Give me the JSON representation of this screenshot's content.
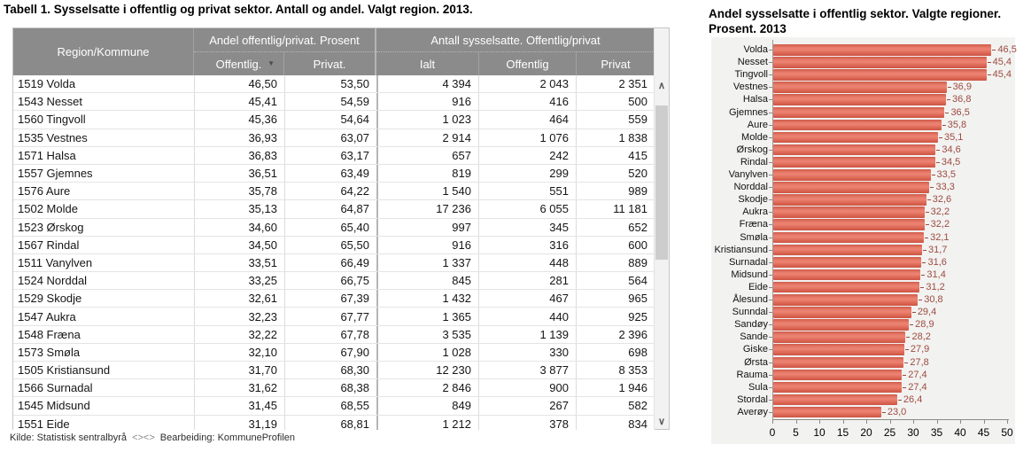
{
  "table": {
    "title": "Tabell 1. Sysselsatte i offentlig og privat sektor. Antall og andel. Valgt region. 2013.",
    "headers": {
      "region": "Region/Kommune",
      "group_andel": "Andel offentlig/privat. Prosent",
      "group_antall": "Antall sysselsatte. Offentlig/privat",
      "offentlig_pct": "Offentlig.",
      "privat_pct": "Privat.",
      "ialt": "Ialt",
      "offentlig": "Offentlig",
      "privat": "Privat"
    },
    "rows": [
      {
        "region": "1519 Volda",
        "andel_offentlig": "46,50",
        "andel_privat": "53,50",
        "ialt": "4 394",
        "offentlig": "2 043",
        "privat": "2 351"
      },
      {
        "region": "1543 Nesset",
        "andel_offentlig": "45,41",
        "andel_privat": "54,59",
        "ialt": "916",
        "offentlig": "416",
        "privat": "500"
      },
      {
        "region": "1560 Tingvoll",
        "andel_offentlig": "45,36",
        "andel_privat": "54,64",
        "ialt": "1 023",
        "offentlig": "464",
        "privat": "559"
      },
      {
        "region": "1535 Vestnes",
        "andel_offentlig": "36,93",
        "andel_privat": "63,07",
        "ialt": "2 914",
        "offentlig": "1 076",
        "privat": "1 838"
      },
      {
        "region": "1571 Halsa",
        "andel_offentlig": "36,83",
        "andel_privat": "63,17",
        "ialt": "657",
        "offentlig": "242",
        "privat": "415"
      },
      {
        "region": "1557 Gjemnes",
        "andel_offentlig": "36,51",
        "andel_privat": "63,49",
        "ialt": "819",
        "offentlig": "299",
        "privat": "520"
      },
      {
        "region": "1576 Aure",
        "andel_offentlig": "35,78",
        "andel_privat": "64,22",
        "ialt": "1 540",
        "offentlig": "551",
        "privat": "989"
      },
      {
        "region": "1502 Molde",
        "andel_offentlig": "35,13",
        "andel_privat": "64,87",
        "ialt": "17 236",
        "offentlig": "6 055",
        "privat": "11 181"
      },
      {
        "region": "1523 Ørskog",
        "andel_offentlig": "34,60",
        "andel_privat": "65,40",
        "ialt": "997",
        "offentlig": "345",
        "privat": "652"
      },
      {
        "region": "1567 Rindal",
        "andel_offentlig": "34,50",
        "andel_privat": "65,50",
        "ialt": "916",
        "offentlig": "316",
        "privat": "600"
      },
      {
        "region": "1511 Vanylven",
        "andel_offentlig": "33,51",
        "andel_privat": "66,49",
        "ialt": "1 337",
        "offentlig": "448",
        "privat": "889"
      },
      {
        "region": "1524 Norddal",
        "andel_offentlig": "33,25",
        "andel_privat": "66,75",
        "ialt": "845",
        "offentlig": "281",
        "privat": "564"
      },
      {
        "region": "1529 Skodje",
        "andel_offentlig": "32,61",
        "andel_privat": "67,39",
        "ialt": "1 432",
        "offentlig": "467",
        "privat": "965"
      },
      {
        "region": "1547 Aukra",
        "andel_offentlig": "32,23",
        "andel_privat": "67,77",
        "ialt": "1 365",
        "offentlig": "440",
        "privat": "925"
      },
      {
        "region": "1548 Fræna",
        "andel_offentlig": "32,22",
        "andel_privat": "67,78",
        "ialt": "3 535",
        "offentlig": "1 139",
        "privat": "2 396"
      },
      {
        "region": "1573 Smøla",
        "andel_offentlig": "32,10",
        "andel_privat": "67,90",
        "ialt": "1 028",
        "offentlig": "330",
        "privat": "698"
      },
      {
        "region": "1505 Kristiansund",
        "andel_offentlig": "31,70",
        "andel_privat": "68,30",
        "ialt": "12 230",
        "offentlig": "3 877",
        "privat": "8 353"
      },
      {
        "region": "1566 Surnadal",
        "andel_offentlig": "31,62",
        "andel_privat": "68,38",
        "ialt": "2 846",
        "offentlig": "900",
        "privat": "1 946"
      },
      {
        "region": "1545 Midsund",
        "andel_offentlig": "31,45",
        "andel_privat": "68,55",
        "ialt": "849",
        "offentlig": "267",
        "privat": "582"
      },
      {
        "region": "1551 Eide",
        "andel_offentlig": "31,19",
        "andel_privat": "68,81",
        "ialt": "1 212",
        "offentlig": "378",
        "privat": "834"
      }
    ],
    "footer": {
      "kilde": "Kilde: Statistisk sentralbyrå",
      "sep": "<><>",
      "bearbeiding": "Bearbeiding: KommuneProfilen"
    }
  },
  "icons": {
    "sort_dropdown": "▼",
    "scroll_up": "∧",
    "scroll_down": "∨"
  },
  "chart_data": {
    "type": "bar",
    "orientation": "horizontal",
    "title_line1": "Andel sysselsatte i offentlig sektor. Valgte regioner.",
    "title_line2": "Prosent. 2013",
    "categories": [
      "Volda",
      "Nesset",
      "Tingvoll",
      "Vestnes",
      "Halsa",
      "Gjemnes",
      "Aure",
      "Molde",
      "Ørskog",
      "Rindal",
      "Vanylven",
      "Norddal",
      "Skodje",
      "Aukra",
      "Fræna",
      "Smøla",
      "Kristiansund",
      "Surnadal",
      "Midsund",
      "Eide",
      "Ålesund",
      "Sunndal",
      "Sandøy",
      "Sande",
      "Giske",
      "Ørsta",
      "Rauma",
      "Sula",
      "Stordal",
      "Averøy"
    ],
    "values": [
      46.5,
      45.4,
      45.4,
      36.9,
      36.8,
      36.5,
      35.8,
      35.1,
      34.6,
      34.5,
      33.5,
      33.3,
      32.6,
      32.2,
      32.2,
      32.1,
      31.7,
      31.6,
      31.4,
      31.2,
      30.8,
      29.4,
      28.9,
      28.2,
      27.9,
      27.8,
      27.4,
      27.4,
      26.4,
      23.0
    ],
    "value_labels": [
      "46,5",
      "45,4",
      "45,4",
      "36,9",
      "36,8",
      "36,5",
      "35,8",
      "35,1",
      "34,6",
      "34,5",
      "33,5",
      "33,3",
      "32,6",
      "32,2",
      "32,2",
      "32,1",
      "31,7",
      "31,6",
      "31,4",
      "31,2",
      "30,8",
      "29,4",
      "28,9",
      "28,2",
      "27,9",
      "27,8",
      "27,4",
      "27,4",
      "26,4",
      "23,0"
    ],
    "xlim": [
      0,
      50
    ],
    "x_ticks": [
      0,
      5,
      10,
      15,
      20,
      25,
      30,
      35,
      40,
      45,
      50
    ],
    "grid": false,
    "legend": false,
    "colors": {
      "bar": "#e06c5a",
      "value_label": "#9d4b3f",
      "panel_bg": "#f2f2f1"
    }
  }
}
